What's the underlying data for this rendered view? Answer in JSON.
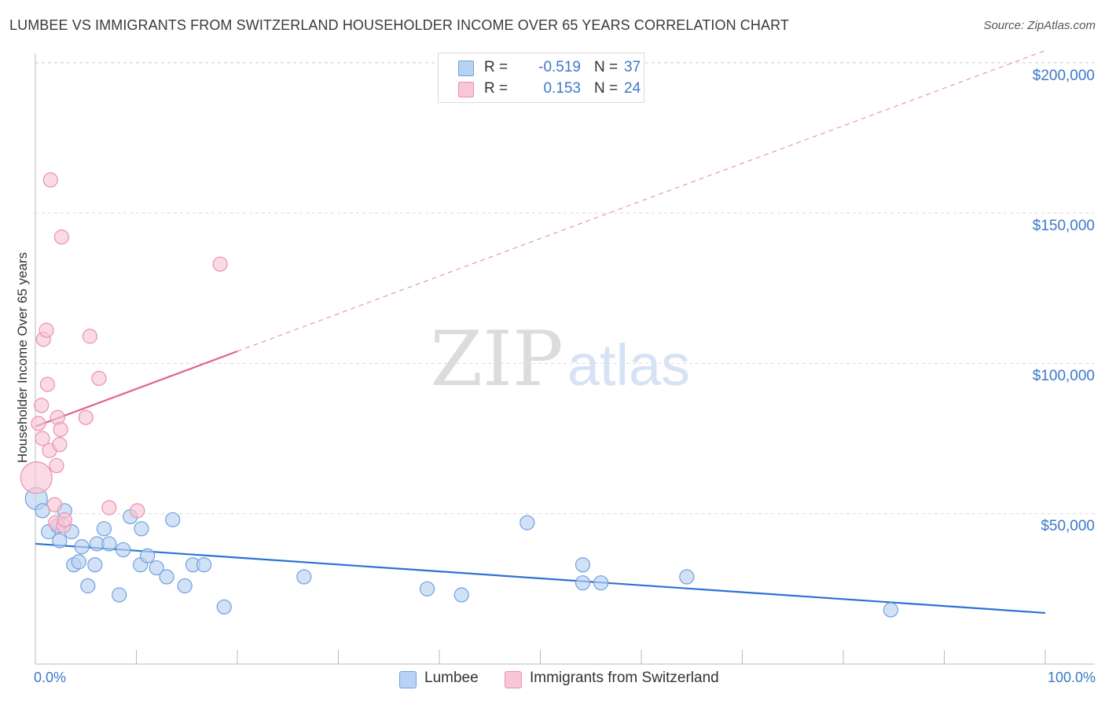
{
  "title": "LUMBEE VS IMMIGRANTS FROM SWITZERLAND HOUSEHOLDER INCOME OVER 65 YEARS CORRELATION CHART",
  "source": "Source: ZipAtlas.com",
  "watermark": {
    "zip": "ZIP",
    "atlas": "atlas"
  },
  "legend_stats": [
    {
      "r_label": "R =",
      "r_value": "-0.519",
      "n_label": "N =",
      "n_value": "37",
      "color": "#a9c7ef"
    },
    {
      "r_label": "R =",
      "r_value": "0.153",
      "n_label": "N =",
      "n_value": "24",
      "color": "#f6b8cc"
    }
  ],
  "chart_data": {
    "type": "scatter",
    "title": "LUMBEE VS IMMIGRANTS FROM SWITZERLAND HOUSEHOLDER INCOME OVER 65 YEARS CORRELATION CHART",
    "xlabel": "",
    "ylabel": "Householder Income Over 65 years",
    "xlim": [
      0,
      100
    ],
    "ylim": [
      0,
      210000
    ],
    "x_tick_labels": [
      "0.0%",
      "100.0%"
    ],
    "y_ticks": [
      50000,
      100000,
      150000,
      200000
    ],
    "y_tick_labels": [
      "$50,000",
      "$100,000",
      "$150,000",
      "$200,000"
    ],
    "grid": true,
    "series": [
      {
        "name": "Lumbee",
        "color": "#6fa0e0",
        "fill": "#b9d2f3",
        "line_color": "#2e72d2",
        "trend": {
          "x0": 0,
          "y0": 40000,
          "x1": 100,
          "y1": 17000,
          "dashed_from": null
        },
        "points": [
          [
            0.1,
            55000,
            14
          ],
          [
            0.7,
            51000,
            9
          ],
          [
            1.3,
            44000,
            9
          ],
          [
            2.2,
            46000,
            9
          ],
          [
            2.4,
            41000,
            9
          ],
          [
            2.9,
            51000,
            9
          ],
          [
            3.6,
            44000,
            9
          ],
          [
            3.8,
            33000,
            9
          ],
          [
            4.3,
            34000,
            9
          ],
          [
            4.6,
            39000,
            9
          ],
          [
            5.2,
            26000,
            9
          ],
          [
            5.9,
            33000,
            9
          ],
          [
            6.1,
            40000,
            9
          ],
          [
            6.8,
            45000,
            9
          ],
          [
            7.3,
            40000,
            9
          ],
          [
            8.3,
            23000,
            9
          ],
          [
            8.7,
            38000,
            9
          ],
          [
            9.4,
            49000,
            9
          ],
          [
            10.4,
            33000,
            9
          ],
          [
            10.5,
            45000,
            9
          ],
          [
            11.1,
            36000,
            9
          ],
          [
            12.0,
            32000,
            9
          ],
          [
            13.0,
            29000,
            9
          ],
          [
            13.6,
            48000,
            9
          ],
          [
            14.8,
            26000,
            9
          ],
          [
            15.6,
            33000,
            9
          ],
          [
            16.7,
            33000,
            9
          ],
          [
            18.7,
            19000,
            9
          ],
          [
            26.6,
            29000,
            9
          ],
          [
            38.8,
            25000,
            9
          ],
          [
            42.2,
            23000,
            9
          ],
          [
            48.7,
            47000,
            9
          ],
          [
            54.2,
            33000,
            9
          ],
          [
            54.2,
            27000,
            9
          ],
          [
            56.0,
            27000,
            9
          ],
          [
            64.5,
            29000,
            9
          ],
          [
            84.7,
            18000,
            9
          ]
        ]
      },
      {
        "name": "Immigrants from Switzerland",
        "color": "#ec8fae",
        "fill": "#f8c6d6",
        "line_color": "#e0648b",
        "trend": {
          "x0": 0,
          "y0": 79000,
          "x1": 100,
          "y1": 204000,
          "dashed_from": 20.0
        },
        "points": [
          [
            0.1,
            62000,
            20
          ],
          [
            0.3,
            80000,
            9
          ],
          [
            0.6,
            86000,
            9
          ],
          [
            0.7,
            75000,
            9
          ],
          [
            0.8,
            108000,
            9
          ],
          [
            1.1,
            111000,
            9
          ],
          [
            1.2,
            93000,
            9
          ],
          [
            1.4,
            71000,
            9
          ],
          [
            1.5,
            161000,
            9
          ],
          [
            1.9,
            53000,
            9
          ],
          [
            2.0,
            47000,
            9
          ],
          [
            2.1,
            66000,
            9
          ],
          [
            2.2,
            82000,
            9
          ],
          [
            2.4,
            73000,
            9
          ],
          [
            2.5,
            78000,
            9
          ],
          [
            2.6,
            142000,
            9
          ],
          [
            2.8,
            46000,
            9
          ],
          [
            2.9,
            48000,
            9
          ],
          [
            5.0,
            82000,
            9
          ],
          [
            5.4,
            109000,
            9
          ],
          [
            6.3,
            95000,
            9
          ],
          [
            7.3,
            52000,
            9
          ],
          [
            10.1,
            51000,
            9
          ],
          [
            18.3,
            133000,
            9
          ]
        ]
      }
    ]
  }
}
